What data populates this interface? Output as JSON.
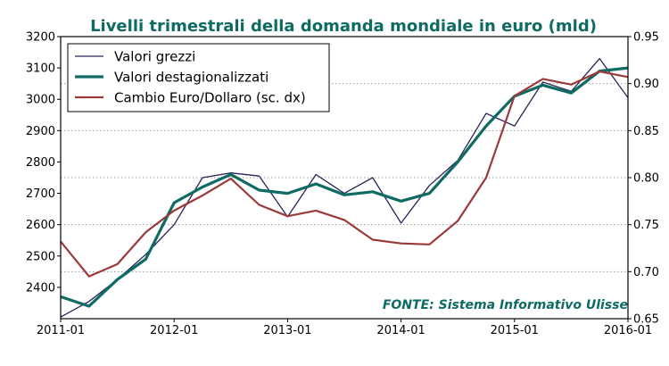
{
  "chart_data": {
    "type": "line",
    "title": "Livelli trimestrali della domanda mondiale in euro (mld)",
    "source_note": "FONTE: Sistema Informativo Ulisse",
    "x": [
      "2011-01",
      "2011-04",
      "2011-07",
      "2011-10",
      "2012-01",
      "2012-04",
      "2012-07",
      "2012-10",
      "2013-01",
      "2013-04",
      "2013-07",
      "2013-10",
      "2014-01",
      "2014-04",
      "2014-07",
      "2014-10",
      "2015-01",
      "2015-04",
      "2015-07",
      "2015-10",
      "2016-01"
    ],
    "xticks": [
      "2011-01",
      "2012-01",
      "2013-01",
      "2014-01",
      "2015-01",
      "2016-01"
    ],
    "left_axis": {
      "ylim": [
        2300,
        3200
      ],
      "ticks": [
        2400,
        2500,
        2600,
        2700,
        2800,
        2900,
        3000,
        3100,
        3200
      ]
    },
    "right_axis": {
      "ylim": [
        0.65,
        0.95
      ],
      "ticks": [
        "0.65",
        "0.70",
        "0.75",
        "0.80",
        "0.85",
        "0.90",
        "0.95"
      ]
    },
    "grid": {
      "horizontal": true,
      "vertical": false,
      "style": "dotted",
      "follows": "right-axis"
    },
    "legend_placement": "top-left",
    "series": [
      {
        "name": "Valori grezzi",
        "axis": "left",
        "color": "#2b2458",
        "values": [
          2305,
          2355,
          2425,
          2505,
          2600,
          2750,
          2765,
          2755,
          2625,
          2760,
          2700,
          2750,
          2605,
          2725,
          2805,
          2955,
          2915,
          3055,
          3025,
          3130,
          3005
        ]
      },
      {
        "name": "Valori destagionalizzati",
        "axis": "left",
        "color": "#0e6b63",
        "values": [
          2370,
          2340,
          2425,
          2490,
          2670,
          2720,
          2760,
          2710,
          2700,
          2730,
          2695,
          2705,
          2675,
          2700,
          2800,
          2915,
          3010,
          3045,
          3020,
          3090,
          3100
        ]
      },
      {
        "name": "Cambio Euro/Dollaro (sc. dx)",
        "axis": "right",
        "color": "#9b3a3a",
        "values": [
          0.732,
          0.695,
          0.708,
          0.742,
          0.765,
          0.781,
          0.799,
          0.771,
          0.759,
          0.765,
          0.755,
          0.734,
          0.73,
          0.729,
          0.754,
          0.8,
          0.887,
          0.905,
          0.899,
          0.913,
          0.907
        ]
      }
    ]
  },
  "colors": {
    "title": "#0e6b63",
    "source": "#0e6b63",
    "grid": "#9a9a9a"
  }
}
